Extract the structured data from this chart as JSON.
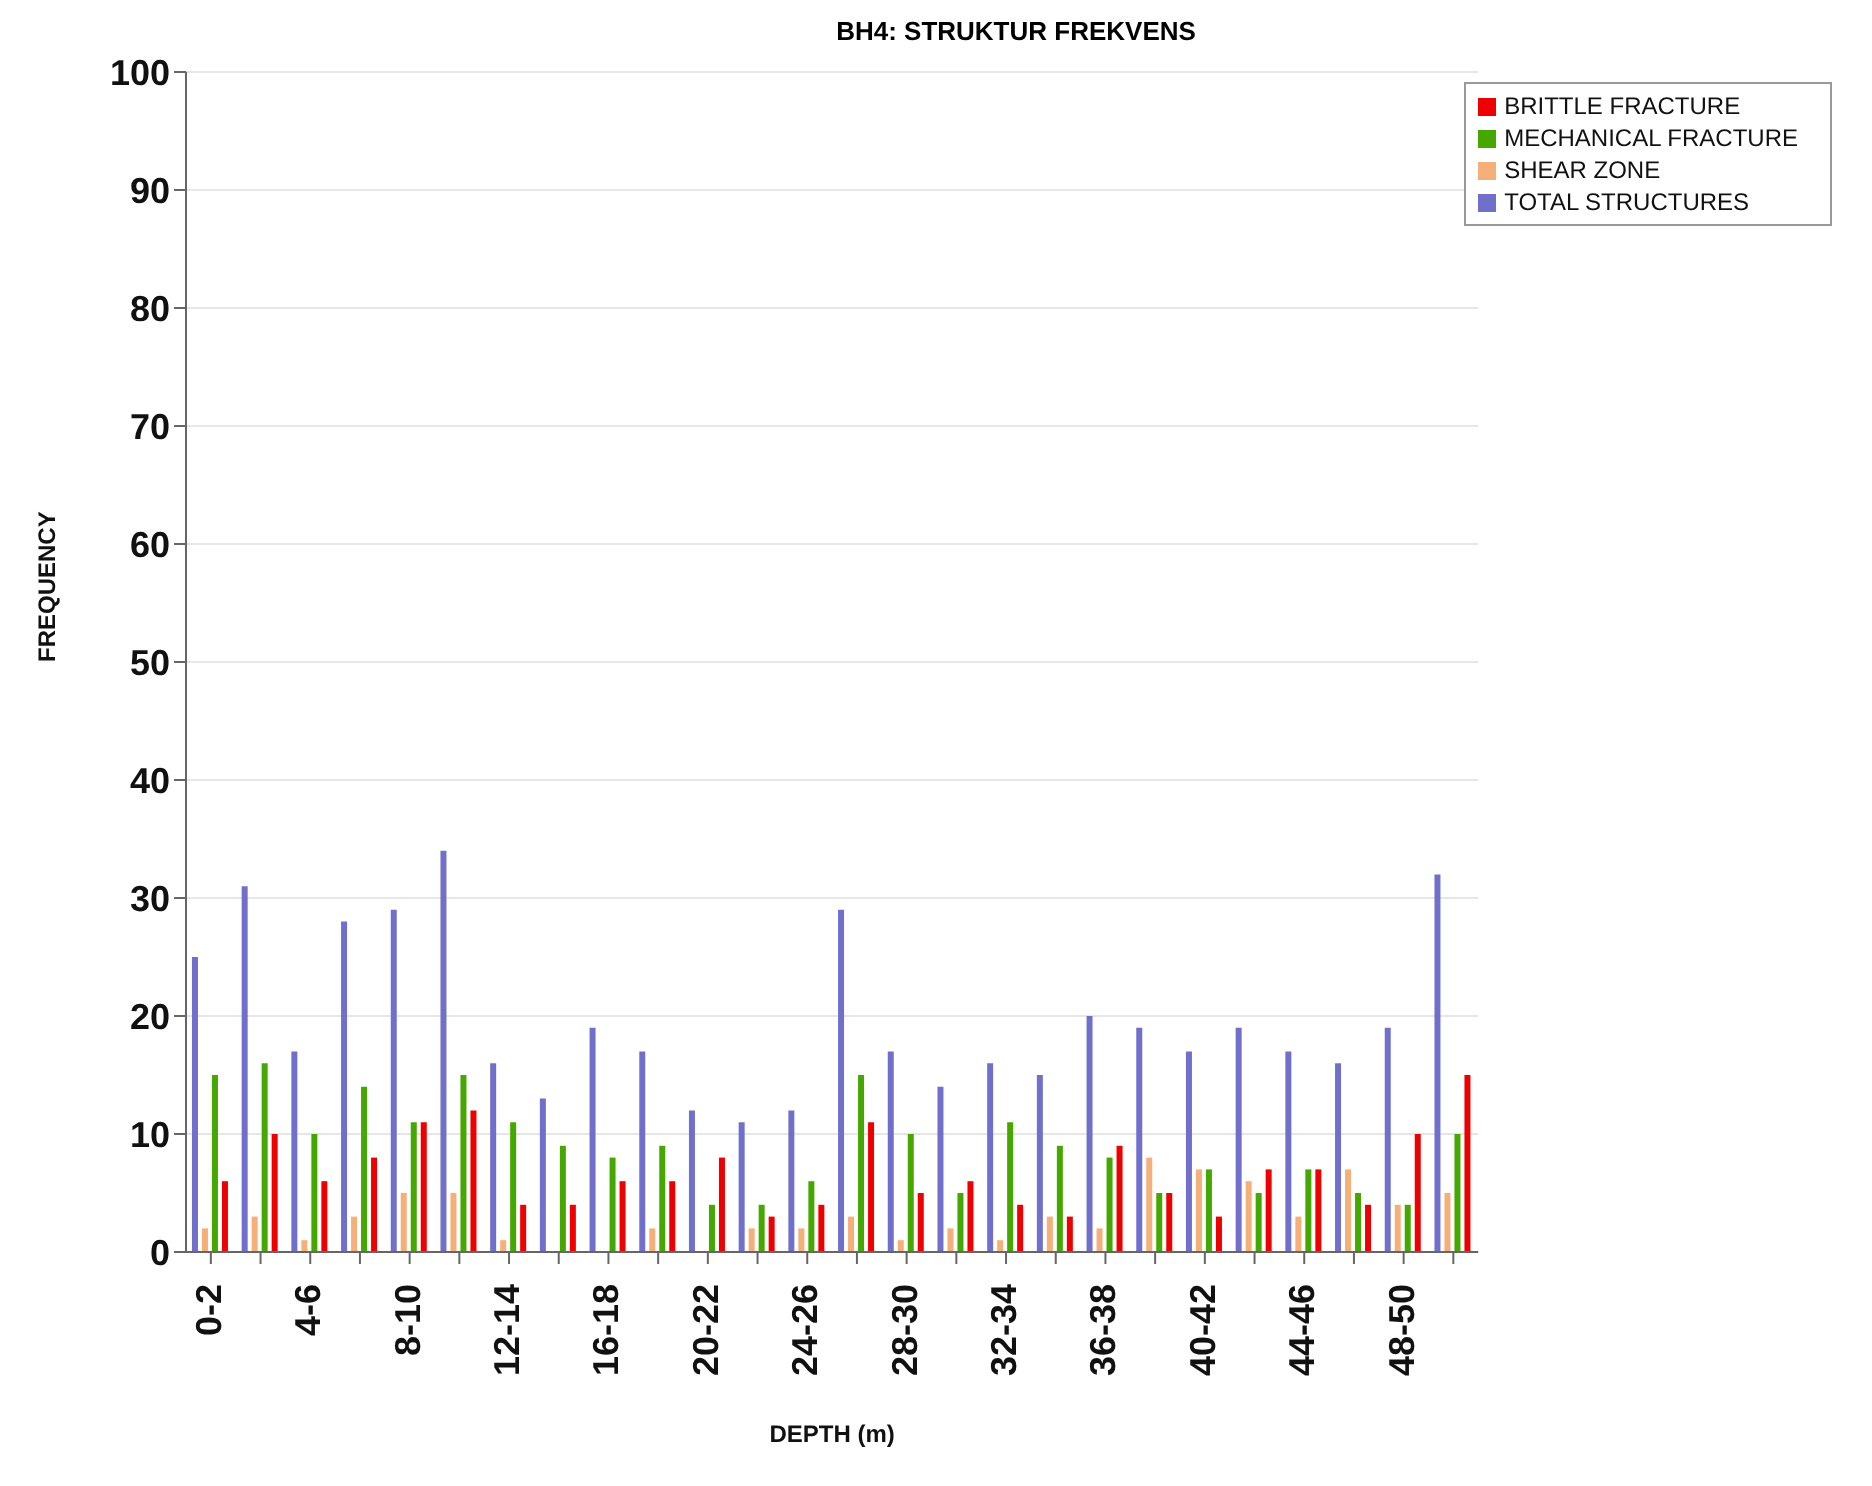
{
  "chart_data": {
    "type": "bar",
    "title": "BH4: STRUKTUR FREKVENS",
    "xlabel": "DEPTH (m)",
    "ylabel": "FREQUENCY",
    "categories": [
      "0-2",
      null,
      "4-6",
      null,
      "8-10",
      null,
      "12-14",
      null,
      "16-18",
      null,
      "20-22",
      null,
      "24-26",
      null,
      "28-30",
      null,
      "32-34",
      null,
      "36-38",
      null,
      "40-42",
      null,
      "44-46",
      null,
      "48-50",
      null
    ],
    "series": [
      {
        "name": "TOTAL STRUCTURES",
        "color": "#7070cc",
        "values": [
          25,
          31,
          17,
          28,
          29,
          34,
          16,
          13,
          19,
          17,
          12,
          11,
          12,
          29,
          17,
          14,
          16,
          15,
          20,
          19,
          17,
          19,
          17,
          16,
          19,
          32
        ]
      },
      {
        "name": "SHEAR ZONE",
        "color": "#f5b07a",
        "values": [
          2,
          3,
          1,
          3,
          5,
          5,
          1,
          0,
          0,
          2,
          0,
          2,
          2,
          3,
          1,
          2,
          1,
          3,
          2,
          8,
          7,
          6,
          3,
          7,
          4,
          5
        ]
      },
      {
        "name": "MECHANICAL FRACTURE",
        "color": "#44a800",
        "values": [
          15,
          16,
          10,
          14,
          11,
          15,
          11,
          9,
          8,
          9,
          4,
          4,
          6,
          15,
          10,
          5,
          11,
          9,
          8,
          5,
          7,
          5,
          7,
          5,
          4,
          10
        ]
      },
      {
        "name": "BRITTLE FRACTURE",
        "color": "#ee0000",
        "values": [
          6,
          10,
          6,
          8,
          11,
          12,
          4,
          4,
          6,
          6,
          8,
          3,
          4,
          11,
          5,
          6,
          4,
          3,
          9,
          5,
          3,
          7,
          7,
          4,
          10,
          15
        ]
      }
    ],
    "ylim": [
      0,
      100
    ],
    "yticks": [
      0,
      10,
      20,
      30,
      40,
      50,
      60,
      70,
      80,
      90,
      100
    ],
    "grid": "y",
    "legend": "top right"
  }
}
